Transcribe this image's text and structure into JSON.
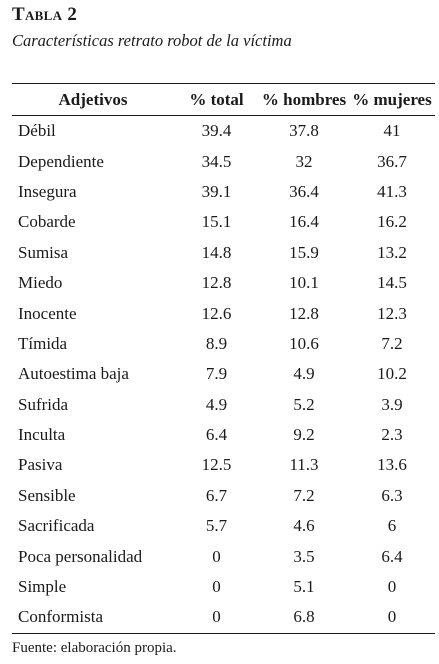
{
  "title": "Tabla 2",
  "subtitle": "Características retrato robot de la víctima",
  "columns": [
    "Adjetivos",
    "% total",
    "% hombres",
    "% mujeres"
  ],
  "rows": [
    [
      "Débil",
      "39.4",
      "37.8",
      "41"
    ],
    [
      "Dependiente",
      "34.5",
      "32",
      "36.7"
    ],
    [
      "Insegura",
      "39.1",
      "36.4",
      "41.3"
    ],
    [
      "Cobarde",
      "15.1",
      "16.4",
      "16.2"
    ],
    [
      "Sumisa",
      "14.8",
      "15.9",
      "13.2"
    ],
    [
      "Miedo",
      "12.8",
      "10.1",
      "14.5"
    ],
    [
      "Inocente",
      "12.6",
      "12.8",
      "12.3"
    ],
    [
      "Tímida",
      "8.9",
      "10.6",
      "7.2"
    ],
    [
      "Autoestima baja",
      "7.9",
      "4.9",
      "10.2"
    ],
    [
      "Sufrida",
      "4.9",
      "5.2",
      "3.9"
    ],
    [
      "Inculta",
      "6.4",
      "9.2",
      "2.3"
    ],
    [
      "Pasiva",
      "12.5",
      "11.3",
      "13.6"
    ],
    [
      "Sensible",
      "6.7",
      "7.2",
      "6.3"
    ],
    [
      "Sacrificada",
      "5.7",
      "4.6",
      "6"
    ],
    [
      "Poca personalidad",
      "0",
      "3.5",
      "6.4"
    ],
    [
      "Simple",
      "0",
      "5.1",
      "0"
    ],
    [
      "Conformista",
      "0",
      "6.8",
      "0"
    ]
  ],
  "source": "Fuente: elaboración propia."
}
